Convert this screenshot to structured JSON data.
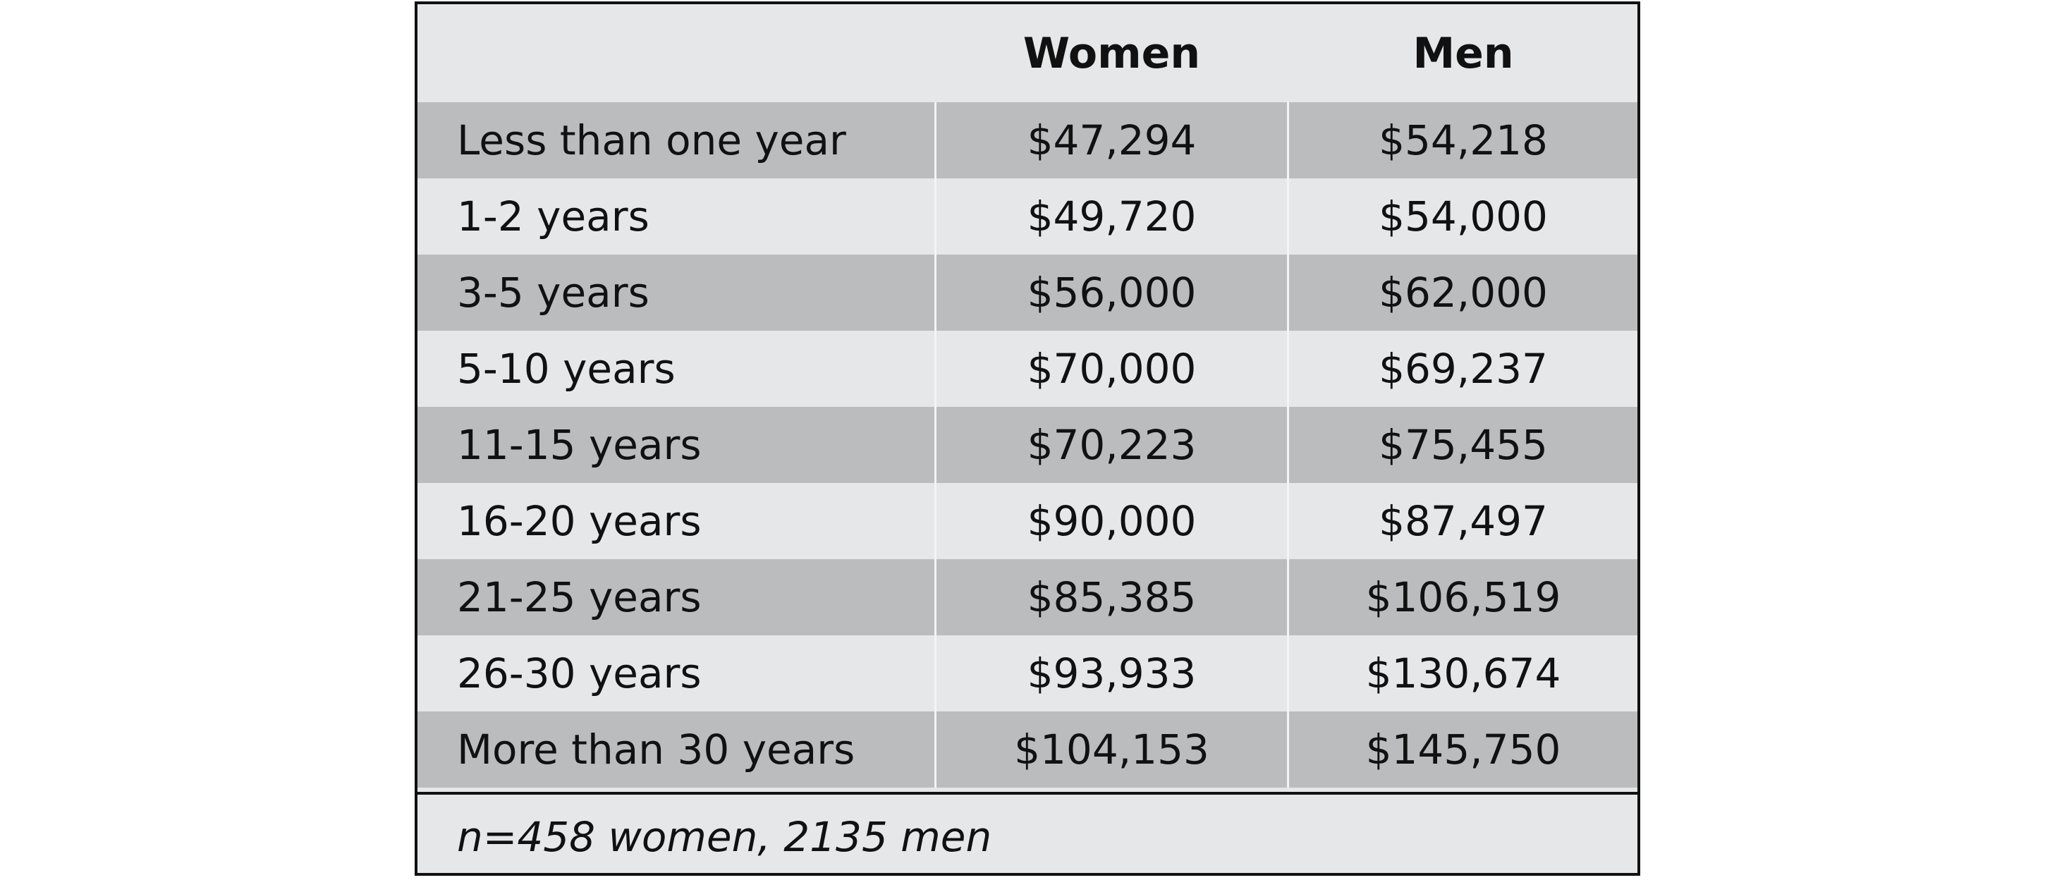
{
  "chart_data": {
    "type": "table",
    "columns": [
      "",
      "Women",
      "Men"
    ],
    "rows": [
      {
        "label": "Less than one year",
        "women": "$47,294",
        "men": "$54,218"
      },
      {
        "label": "1-2 years",
        "women": "$49,720",
        "men": "$54,000"
      },
      {
        "label": "3-5 years",
        "women": "$56,000",
        "men": "$62,000"
      },
      {
        "label": "5-10 years",
        "women": "$70,000",
        "men": "$69,237"
      },
      {
        "label": "11-15 years",
        "women": "$70,223",
        "men": "$75,455"
      },
      {
        "label": "16-20 years",
        "women": "$90,000",
        "men": "$87,497"
      },
      {
        "label": "21-25 years",
        "women": "$85,385",
        "men": "$106,519"
      },
      {
        "label": "26-30 years",
        "women": "$93,933",
        "men": "$130,674"
      },
      {
        "label": "More than 30 years",
        "women": "$104,153",
        "men": "$145,750"
      }
    ],
    "footnote": "n=458 women, 2135 men"
  },
  "colors": {
    "header_background": "#e6e7e9",
    "dark_row": "#bbbcbe",
    "light_row": "#e6e7e9",
    "border": "#111111",
    "text": "#111111"
  }
}
